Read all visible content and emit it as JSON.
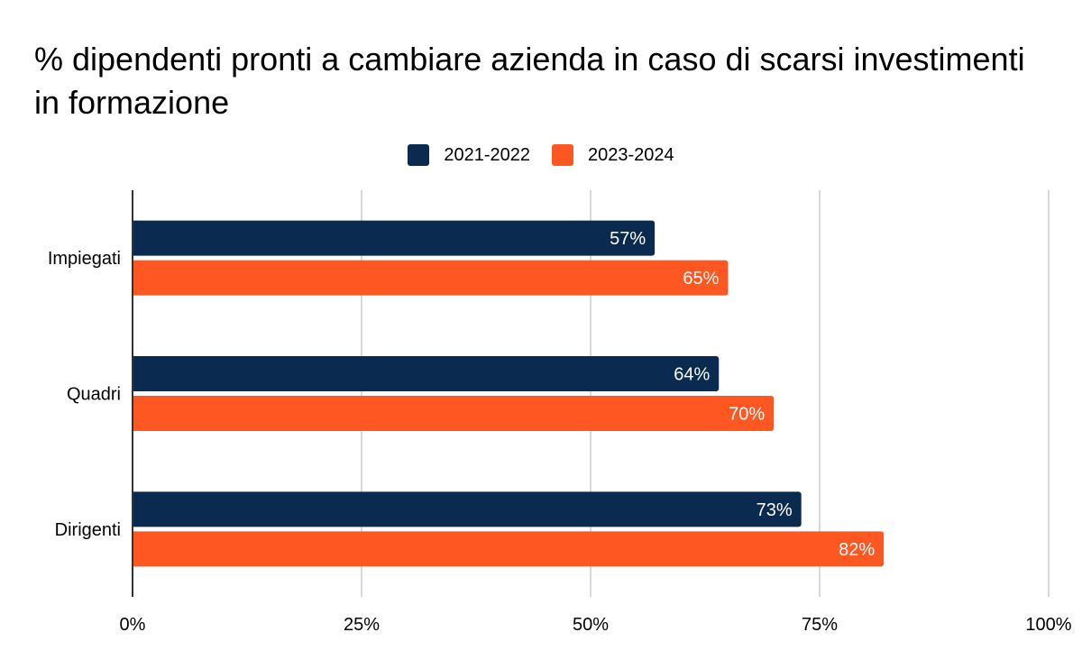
{
  "chart_data": {
    "type": "bar",
    "orientation": "horizontal",
    "title": "% dipendenti pronti a cambiare azienda in caso di scarsi investimenti in formazione",
    "categories": [
      "Impiegati",
      "Quadri",
      "Dirigenti"
    ],
    "series": [
      {
        "name": "2021-2022",
        "color": "#0b2a4f",
        "values": [
          57,
          64,
          73
        ],
        "labels": [
          "57%",
          "64%",
          "73%"
        ]
      },
      {
        "name": "2023-2024",
        "color": "#ff5722",
        "values": [
          65,
          70,
          82
        ],
        "labels": [
          "65%",
          "70%",
          "82%"
        ]
      }
    ],
    "xlim": [
      0,
      100
    ],
    "xticks": [
      0,
      25,
      50,
      75,
      100
    ],
    "xtick_labels": [
      "0%",
      "25%",
      "50%",
      "75%",
      "100%"
    ],
    "grid": true,
    "legend_position": "top-center",
    "xlabel": "",
    "ylabel": ""
  }
}
